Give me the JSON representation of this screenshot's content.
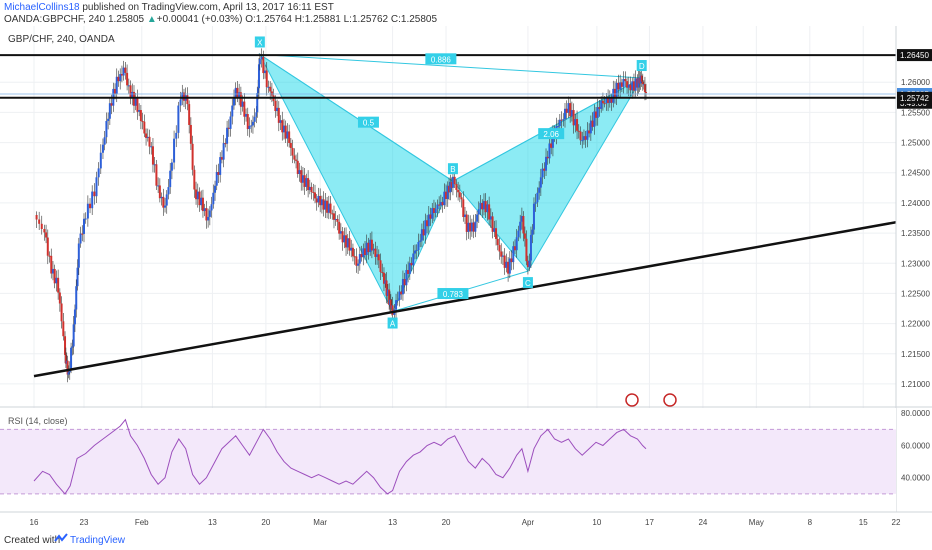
{
  "header": {
    "author": "MichaelCollins18",
    "published": "published on TradingView.com, April 13, 2017 16:11 EST",
    "symbol_line": "OANDA:GBPCHF, 240",
    "last": "1.25805",
    "change": "+0.00041 (+0.03%)",
    "open_label": "O:",
    "open": "1.25764",
    "high_label": "H:",
    "high": "1.25881",
    "low_label": "L:",
    "low": "1.25762",
    "close_label": "C:",
    "close": "1.25805"
  },
  "chart_data": {
    "type": "candlestick",
    "title": "GBP/CHF, 240, OANDA",
    "price_ticks": [
      "1.26000",
      "1.25500",
      "1.25000",
      "1.24500",
      "1.24000",
      "1.23500",
      "1.23000",
      "1.22500",
      "1.22000",
      "1.21500",
      "1.21000"
    ],
    "price_range": [
      1.208,
      1.267
    ],
    "date_ticks": [
      {
        "label": "16",
        "pos": 0.0
      },
      {
        "label": "23",
        "pos": 0.058
      },
      {
        "label": "Feb",
        "pos": 0.125
      },
      {
        "label": "13",
        "pos": 0.207
      },
      {
        "label": "20",
        "pos": 0.269
      },
      {
        "label": "Mar",
        "pos": 0.332
      },
      {
        "label": "13",
        "pos": 0.416
      },
      {
        "label": "20",
        "pos": 0.478
      },
      {
        "label": "Apr",
        "pos": 0.573
      },
      {
        "label": "10",
        "pos": 0.653
      },
      {
        "label": "17",
        "pos": 0.714
      },
      {
        "label": "24",
        "pos": 0.776
      },
      {
        "label": "May",
        "pos": 0.838
      },
      {
        "label": "8",
        "pos": 0.9
      },
      {
        "label": "15",
        "pos": 0.962
      },
      {
        "label": "22",
        "pos": 1.0
      }
    ],
    "price_badges": [
      {
        "label": "1.26450",
        "value": 1.2645,
        "style": "dark"
      },
      {
        "label": "1.25805",
        "value": 1.25805,
        "style": "blue"
      },
      {
        "label": "3:49:06",
        "value": 1.2566,
        "style": "dark"
      },
      {
        "label": "1.25742",
        "value": 1.25742,
        "style": "dark"
      }
    ],
    "horizontal_levels": [
      1.2645,
      1.25742
    ],
    "trendline": {
      "from": [
        0.0,
        1.2113
      ],
      "to": [
        1.0,
        1.2368
      ]
    },
    "harmonic_pattern": {
      "points": [
        {
          "label": "X",
          "t": 0.262,
          "v": 1.2646
        },
        {
          "label": "A",
          "t": 0.416,
          "v": 1.222
        },
        {
          "label": "B",
          "t": 0.486,
          "v": 1.2436
        },
        {
          "label": "C",
          "t": 0.573,
          "v": 1.2287
        },
        {
          "label": "D",
          "t": 0.705,
          "v": 1.2607
        }
      ],
      "ratios": [
        {
          "label": "0.886",
          "t": 0.472,
          "v": 1.2638
        },
        {
          "label": "0.5",
          "t": 0.388,
          "v": 1.2533
        },
        {
          "label": "0.783",
          "t": 0.486,
          "v": 1.2249
        },
        {
          "label": "2.06",
          "t": 0.6,
          "v": 1.2514
        }
      ]
    },
    "price_path": [
      [
        0.0,
        1.238
      ],
      [
        0.012,
        1.235
      ],
      [
        0.02,
        1.229
      ],
      [
        0.028,
        1.226
      ],
      [
        0.036,
        1.215
      ],
      [
        0.04,
        1.2113
      ],
      [
        0.046,
        1.219
      ],
      [
        0.052,
        1.233
      ],
      [
        0.06,
        1.238
      ],
      [
        0.07,
        1.242
      ],
      [
        0.08,
        1.25
      ],
      [
        0.088,
        1.256
      ],
      [
        0.096,
        1.26
      ],
      [
        0.104,
        1.262
      ],
      [
        0.112,
        1.258
      ],
      [
        0.12,
        1.256
      ],
      [
        0.128,
        1.252
      ],
      [
        0.136,
        1.249
      ],
      [
        0.144,
        1.242
      ],
      [
        0.152,
        1.239
      ],
      [
        0.16,
        1.247
      ],
      [
        0.17,
        1.258
      ],
      [
        0.178,
        1.257
      ],
      [
        0.186,
        1.242
      ],
      [
        0.194,
        1.24
      ],
      [
        0.202,
        1.237
      ],
      [
        0.21,
        1.243
      ],
      [
        0.218,
        1.248
      ],
      [
        0.226,
        1.253
      ],
      [
        0.234,
        1.259
      ],
      [
        0.242,
        1.256
      ],
      [
        0.25,
        1.252
      ],
      [
        0.258,
        1.255
      ],
      [
        0.262,
        1.2646
      ],
      [
        0.27,
        1.26
      ],
      [
        0.278,
        1.257
      ],
      [
        0.286,
        1.253
      ],
      [
        0.294,
        1.251
      ],
      [
        0.302,
        1.247
      ],
      [
        0.31,
        1.244
      ],
      [
        0.318,
        1.243
      ],
      [
        0.326,
        1.241
      ],
      [
        0.334,
        1.24
      ],
      [
        0.342,
        1.239
      ],
      [
        0.35,
        1.237
      ],
      [
        0.358,
        1.234
      ],
      [
        0.366,
        1.233
      ],
      [
        0.374,
        1.23
      ],
      [
        0.382,
        1.232
      ],
      [
        0.39,
        1.233
      ],
      [
        0.398,
        1.231
      ],
      [
        0.406,
        1.227
      ],
      [
        0.412,
        1.224
      ],
      [
        0.416,
        1.222
      ],
      [
        0.424,
        1.225
      ],
      [
        0.432,
        1.228
      ],
      [
        0.44,
        1.231
      ],
      [
        0.448,
        1.234
      ],
      [
        0.456,
        1.237
      ],
      [
        0.464,
        1.239
      ],
      [
        0.472,
        1.24
      ],
      [
        0.48,
        1.242
      ],
      [
        0.486,
        1.2436
      ],
      [
        0.494,
        1.241
      ],
      [
        0.502,
        1.236
      ],
      [
        0.51,
        1.236
      ],
      [
        0.518,
        1.24
      ],
      [
        0.526,
        1.239
      ],
      [
        0.534,
        1.235
      ],
      [
        0.542,
        1.231
      ],
      [
        0.55,
        1.229
      ],
      [
        0.558,
        1.233
      ],
      [
        0.566,
        1.238
      ],
      [
        0.573,
        1.2287
      ],
      [
        0.58,
        1.239
      ],
      [
        0.588,
        1.244
      ],
      [
        0.596,
        1.248
      ],
      [
        0.604,
        1.252
      ],
      [
        0.612,
        1.254
      ],
      [
        0.62,
        1.256
      ],
      [
        0.628,
        1.253
      ],
      [
        0.636,
        1.25
      ],
      [
        0.644,
        1.252
      ],
      [
        0.652,
        1.255
      ],
      [
        0.66,
        1.257
      ],
      [
        0.668,
        1.257
      ],
      [
        0.676,
        1.259
      ],
      [
        0.684,
        1.26
      ],
      [
        0.692,
        1.259
      ],
      [
        0.7,
        1.26
      ],
      [
        0.705,
        1.2607
      ],
      [
        0.71,
        1.258
      ]
    ],
    "rsi": {
      "label": "RSI (14, close)",
      "ticks": [
        "80.0000",
        "60.0000",
        "40.0000"
      ],
      "range": [
        20,
        82
      ],
      "upper_band": 70,
      "lower_band": 30,
      "values": [
        [
          0.0,
          38
        ],
        [
          0.01,
          44
        ],
        [
          0.018,
          42
        ],
        [
          0.026,
          36
        ],
        [
          0.036,
          30
        ],
        [
          0.042,
          35
        ],
        [
          0.05,
          52
        ],
        [
          0.06,
          55
        ],
        [
          0.07,
          60
        ],
        [
          0.08,
          64
        ],
        [
          0.09,
          68
        ],
        [
          0.1,
          72
        ],
        [
          0.106,
          76
        ],
        [
          0.112,
          66
        ],
        [
          0.12,
          60
        ],
        [
          0.128,
          52
        ],
        [
          0.136,
          42
        ],
        [
          0.144,
          36
        ],
        [
          0.152,
          40
        ],
        [
          0.16,
          56
        ],
        [
          0.168,
          64
        ],
        [
          0.176,
          58
        ],
        [
          0.184,
          42
        ],
        [
          0.192,
          36
        ],
        [
          0.2,
          40
        ],
        [
          0.21,
          50
        ],
        [
          0.218,
          58
        ],
        [
          0.226,
          62
        ],
        [
          0.234,
          66
        ],
        [
          0.242,
          60
        ],
        [
          0.25,
          54
        ],
        [
          0.258,
          62
        ],
        [
          0.266,
          70
        ],
        [
          0.274,
          64
        ],
        [
          0.282,
          56
        ],
        [
          0.29,
          50
        ],
        [
          0.298,
          46
        ],
        [
          0.306,
          44
        ],
        [
          0.314,
          42
        ],
        [
          0.322,
          40
        ],
        [
          0.33,
          42
        ],
        [
          0.338,
          40
        ],
        [
          0.346,
          38
        ],
        [
          0.354,
          36
        ],
        [
          0.362,
          38
        ],
        [
          0.37,
          36
        ],
        [
          0.378,
          40
        ],
        [
          0.386,
          44
        ],
        [
          0.394,
          40
        ],
        [
          0.402,
          34
        ],
        [
          0.41,
          30
        ],
        [
          0.416,
          32
        ],
        [
          0.424,
          44
        ],
        [
          0.432,
          50
        ],
        [
          0.44,
          54
        ],
        [
          0.448,
          56
        ],
        [
          0.456,
          60
        ],
        [
          0.464,
          62
        ],
        [
          0.472,
          60
        ],
        [
          0.48,
          64
        ],
        [
          0.488,
          66
        ],
        [
          0.496,
          58
        ],
        [
          0.504,
          50
        ],
        [
          0.512,
          46
        ],
        [
          0.52,
          52
        ],
        [
          0.528,
          48
        ],
        [
          0.536,
          42
        ],
        [
          0.544,
          40
        ],
        [
          0.552,
          46
        ],
        [
          0.56,
          54
        ],
        [
          0.566,
          58
        ],
        [
          0.573,
          44
        ],
        [
          0.58,
          58
        ],
        [
          0.588,
          66
        ],
        [
          0.596,
          70
        ],
        [
          0.604,
          64
        ],
        [
          0.612,
          62
        ],
        [
          0.62,
          64
        ],
        [
          0.628,
          58
        ],
        [
          0.636,
          54
        ],
        [
          0.644,
          58
        ],
        [
          0.652,
          62
        ],
        [
          0.66,
          60
        ],
        [
          0.668,
          64
        ],
        [
          0.676,
          68
        ],
        [
          0.684,
          70
        ],
        [
          0.692,
          66
        ],
        [
          0.7,
          64
        ],
        [
          0.706,
          60
        ],
        [
          0.71,
          58
        ]
      ]
    }
  }
}
